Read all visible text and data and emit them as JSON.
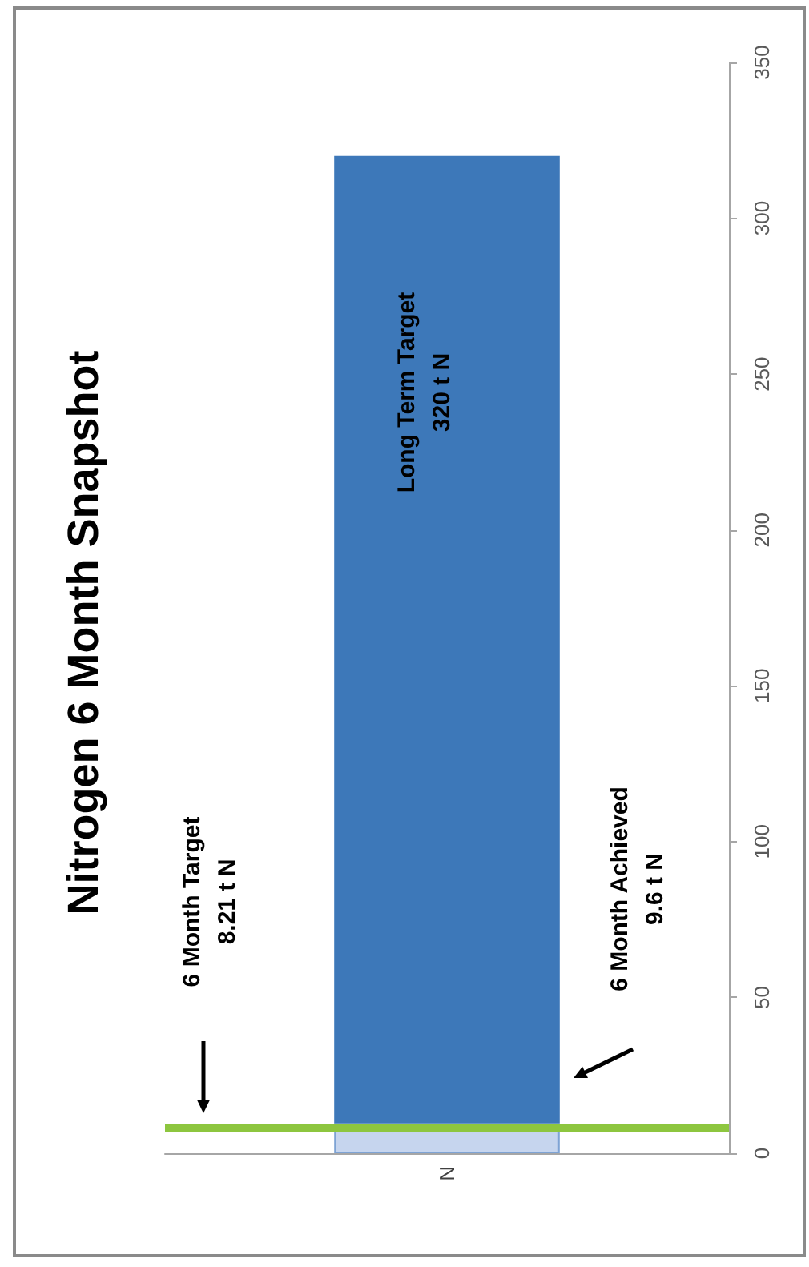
{
  "chart_data": {
    "type": "bar",
    "title": "Nitrogen 6 Month Snapshot",
    "categories": [
      "N"
    ],
    "stacked": true,
    "series": [
      {
        "color": "#c6d5ee",
        "values": [
          9.6
        ]
      },
      {
        "color": "#3d78b9",
        "values": [
          310.4
        ]
      }
    ],
    "ylim": [
      0,
      350
    ],
    "yticks": [
      0,
      50,
      100,
      150,
      200,
      250,
      300,
      350
    ],
    "grid": false,
    "ref_lines": [
      {
        "axis": "y",
        "value": 8.21,
        "color": "#8dc63f"
      }
    ],
    "annotations": [
      "Long Term Target\n320 t N",
      "6 Month Target\n8.21 t N",
      "6 Month Achieved\n9.6 t N"
    ]
  }
}
